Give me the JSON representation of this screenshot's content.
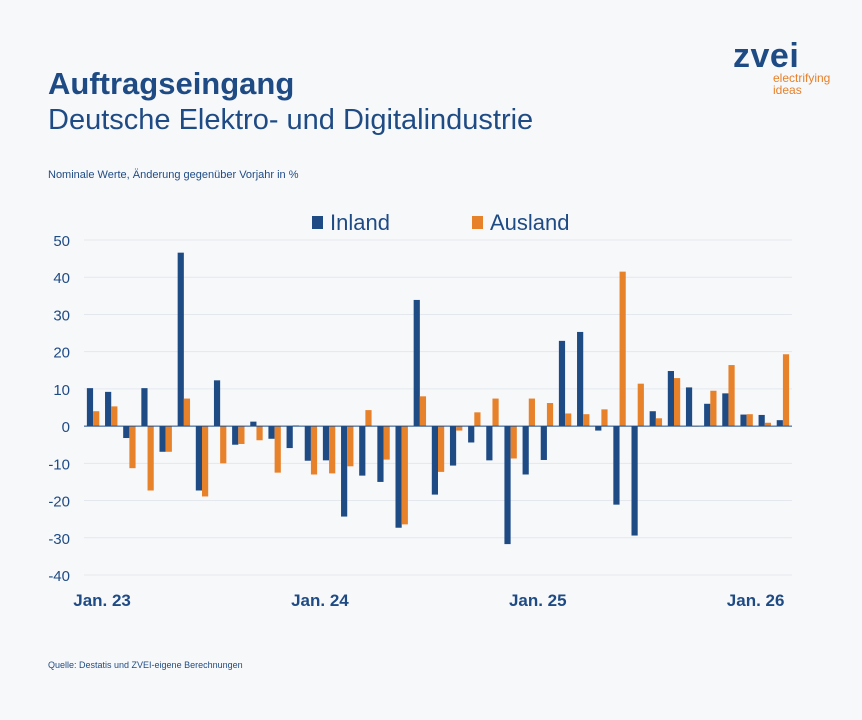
{
  "header": {
    "title": "Auftragseingang",
    "subtitle": "Deutsche Elektro- und Digitalindustrie",
    "note": "Nominale Werte, Änderung gegenüber Vorjahr in %"
  },
  "logo": {
    "word": "zvei",
    "tagline": "electrifying ideas"
  },
  "footer": {
    "source": "Quelle: Destatis und ZVEI-eigene Berechnungen"
  },
  "colors": {
    "inland": "#1f4b85",
    "ausland": "#e7812a",
    "text": "#1f4b85"
  },
  "chart_data": {
    "type": "bar",
    "ylim": [
      -40,
      50
    ],
    "yticks": [
      50,
      40,
      30,
      20,
      10,
      0,
      -10,
      -20,
      -30,
      -40
    ],
    "grid": true,
    "legend_position": "top-center",
    "x_tick_labels": [
      {
        "label": "Jan. 23",
        "index": 0
      },
      {
        "label": "Jan. 24",
        "index": 12
      },
      {
        "label": "Jan. 25",
        "index": 24
      },
      {
        "label": "Jan. 26",
        "index": 36
      }
    ],
    "series": [
      {
        "name": "Inland",
        "color": "#1f4b85",
        "values": [
          10.2,
          9.2,
          -3.2,
          10.2,
          -6.9,
          46.6,
          -17.3,
          12.3,
          -5.0,
          1.2,
          -3.4,
          -5.9,
          -9.3,
          -9.2,
          -24.3,
          -13.3,
          -15.0,
          -27.3,
          33.9,
          -18.4,
          -10.6,
          -4.4,
          -9.2,
          -31.7,
          -13.0,
          -9.1,
          22.9,
          25.3,
          -1.2,
          -21.1,
          -29.4,
          4.0,
          14.8,
          10.4,
          6.0,
          8.8,
          3.1,
          3.0,
          1.6
        ]
      },
      {
        "name": "Ausland",
        "color": "#e7812a",
        "values": [
          4.0,
          5.3,
          -11.3,
          -17.3,
          -6.9,
          7.4,
          -18.9,
          -10.0,
          -4.8,
          -3.8,
          -12.5,
          0.2,
          -13.0,
          -12.7,
          -10.8,
          4.3,
          -9.0,
          -26.4,
          8.0,
          -12.3,
          -1.2,
          3.7,
          7.4,
          -8.7,
          7.4,
          6.2,
          3.4,
          3.2,
          4.5,
          41.5,
          11.4,
          2.1,
          12.9,
          0.0,
          9.5,
          16.4,
          3.2,
          0.9,
          19.3
        ]
      }
    ]
  }
}
